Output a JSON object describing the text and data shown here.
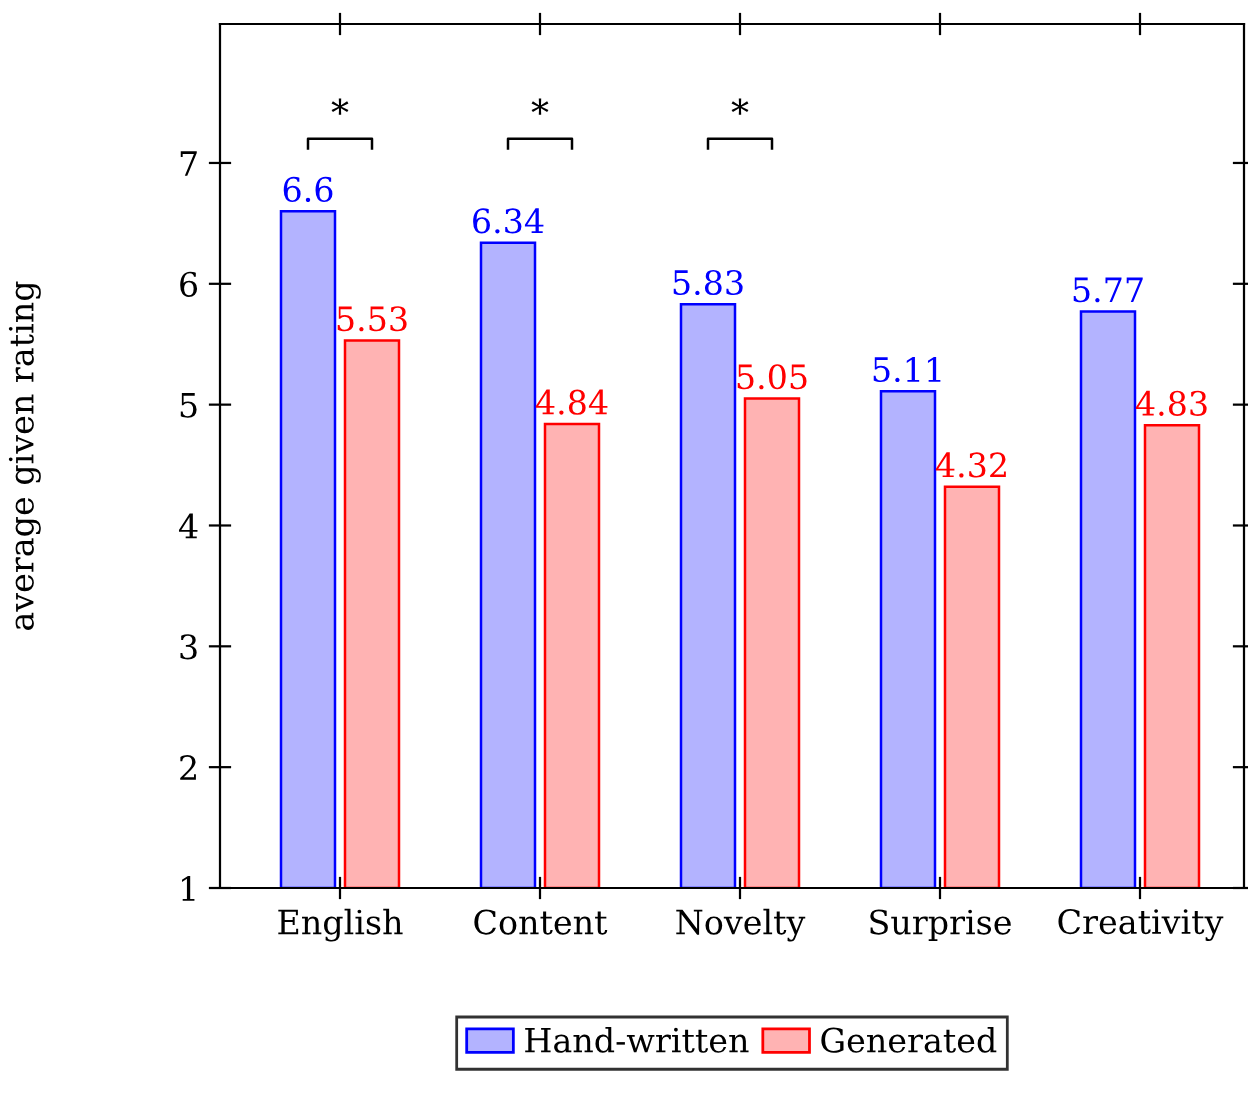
{
  "chart_data": {
    "type": "bar",
    "ylabel": "average given rating",
    "categories": [
      "English",
      "Content",
      "Novelty",
      "Surprise",
      "Creativity"
    ],
    "series": [
      {
        "name": "Hand-written",
        "color": "#b3b3ff",
        "values": [
          6.6,
          6.34,
          5.83,
          5.11,
          5.77
        ]
      },
      {
        "name": "Generated",
        "color": "#ffb3b3",
        "values": [
          5.53,
          4.84,
          5.05,
          4.32,
          4.83
        ]
      }
    ],
    "ylim": [
      1,
      8.15
    ],
    "yticks": [
      1,
      2,
      3,
      4,
      5,
      6,
      7
    ],
    "data_labels": true,
    "grid": false,
    "legend": "bottom",
    "annotations": [
      "*",
      "*",
      "*"
    ]
  }
}
